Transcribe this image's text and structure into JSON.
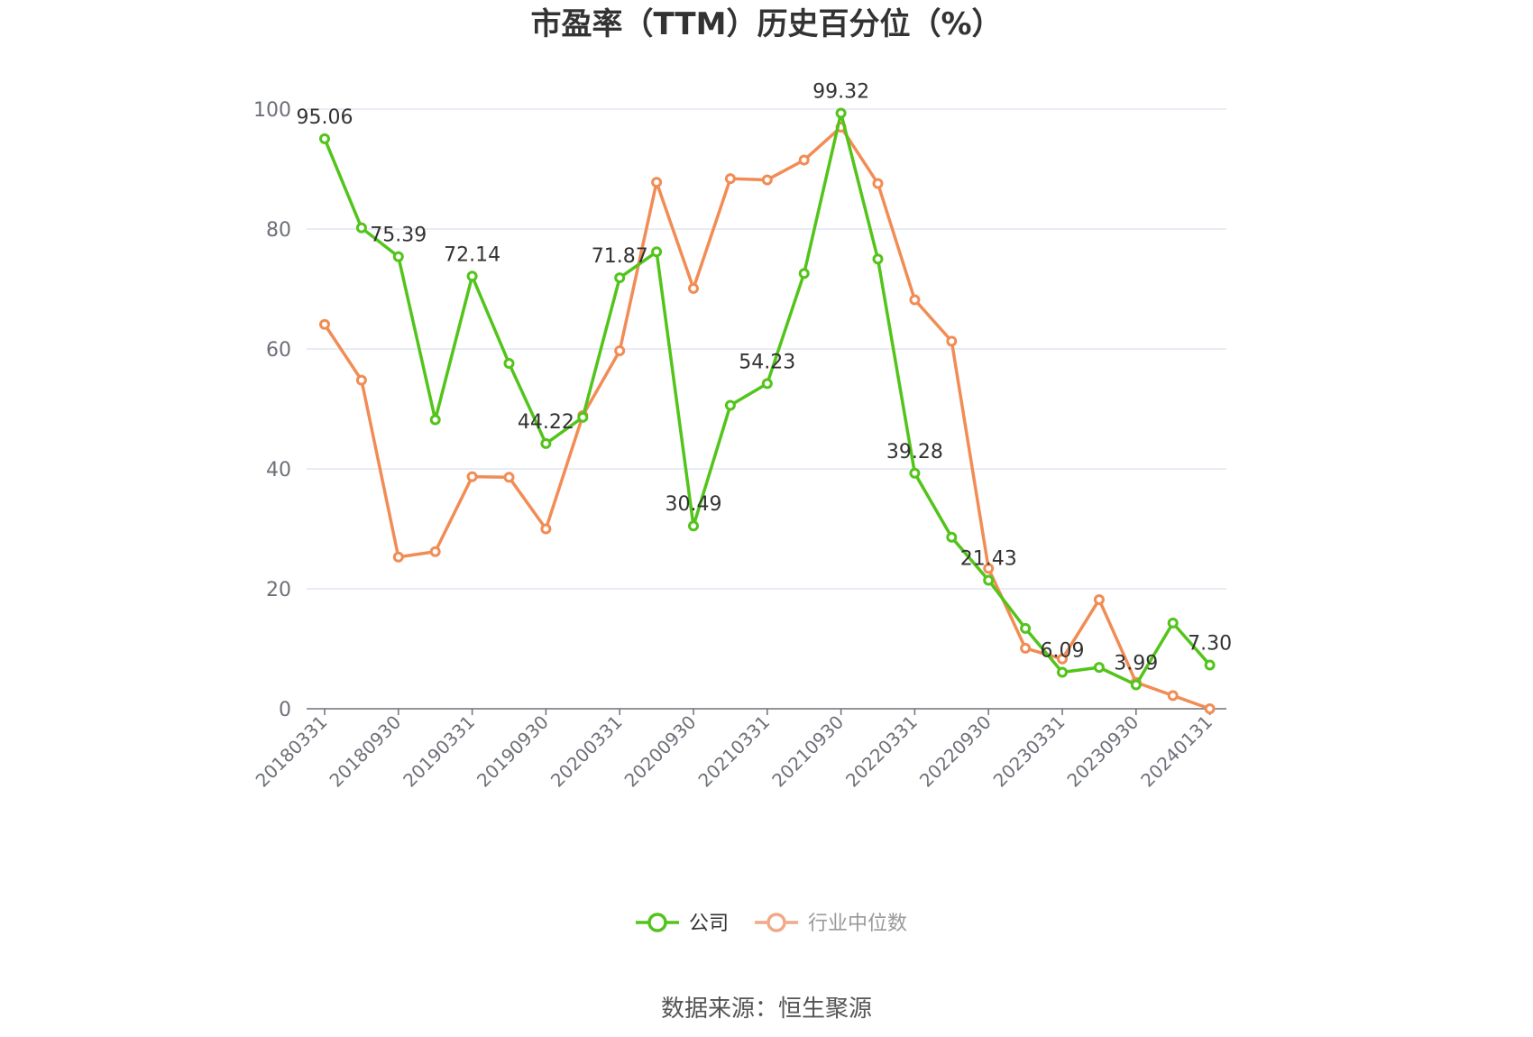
{
  "chart_data": {
    "type": "line",
    "title": "市盈率（TTM）历史百分位（%）",
    "ylim": [
      0,
      100
    ],
    "yticks": [
      0,
      20,
      40,
      60,
      80,
      100
    ],
    "grid": true,
    "legend_placement": "bottom-center",
    "x": [
      "20180331",
      "20180630",
      "20180930",
      "20181231",
      "20190331",
      "20190630",
      "20190930",
      "20191231",
      "20200331",
      "20200630",
      "20200930",
      "20201231",
      "20210331",
      "20210630",
      "20210930",
      "20211231",
      "20220331",
      "20220630",
      "20220930",
      "20221231",
      "20230331",
      "20230630",
      "20230930",
      "20231231",
      "20240131"
    ],
    "x_tick_labels": [
      "20180331",
      "20180930",
      "20190331",
      "20190930",
      "20200331",
      "20200930",
      "20210331",
      "20210930",
      "20220331",
      "20220930",
      "20230331",
      "20230930",
      "20240131"
    ],
    "series": [
      {
        "name": "公司",
        "color": "#52c41a",
        "values": [
          95.06,
          80.2,
          75.39,
          48.2,
          72.14,
          57.6,
          44.22,
          48.6,
          71.87,
          76.2,
          30.49,
          50.6,
          54.23,
          72.6,
          99.32,
          75.0,
          39.28,
          28.6,
          21.43,
          13.4,
          6.09,
          6.9,
          3.99,
          14.3,
          7.3
        ],
        "labels": [
          "95.06",
          "",
          "75.39",
          "",
          "72.14",
          "",
          "44.22",
          "",
          "71.87",
          "",
          "30.49",
          "",
          "54.23",
          "",
          "99.32",
          "",
          "39.28",
          "",
          "21.43",
          "",
          "6.09",
          "",
          "3.99",
          "",
          "7.30"
        ]
      },
      {
        "name": "行业中位数",
        "color": "#f28c55",
        "values": [
          64.1,
          54.8,
          25.3,
          26.2,
          38.7,
          38.6,
          30.0,
          48.9,
          59.7,
          87.8,
          70.1,
          88.4,
          88.2,
          91.5,
          97.0,
          87.6,
          68.2,
          61.3,
          23.4,
          10.1,
          8.3,
          18.2,
          4.4,
          2.2,
          0.0
        ]
      }
    ]
  },
  "legend": [
    {
      "name": "公司",
      "color": "#52c41a",
      "text_color": "#333333"
    },
    {
      "name": "行业中位数",
      "color": "#f2a987",
      "text_color": "#999999"
    }
  ],
  "source": "数据来源：恒生聚源"
}
